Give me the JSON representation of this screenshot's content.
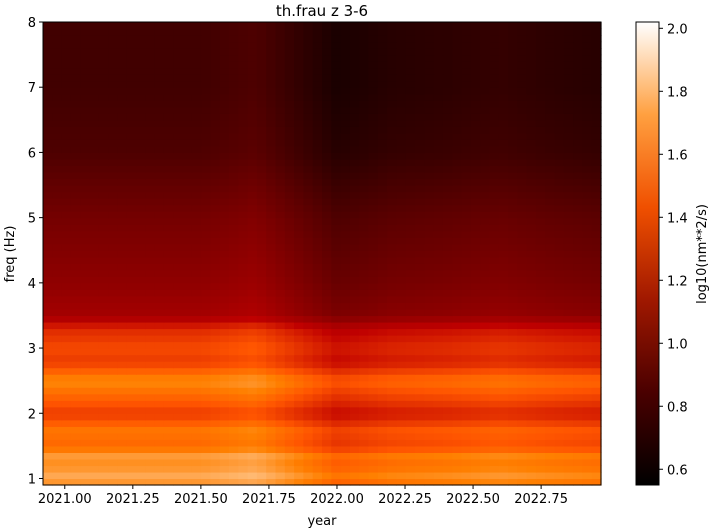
{
  "chart_data": {
    "type": "heatmap",
    "title": "th.frau z 3-6",
    "xlabel": "year",
    "ylabel": "freq (Hz)",
    "xlim": [
      2020.92,
      2022.97
    ],
    "ylim": [
      0.9,
      8.0
    ],
    "x_ticks": [
      2021.0,
      2021.25,
      2021.5,
      2021.75,
      2022.0,
      2022.25,
      2022.5,
      2022.75
    ],
    "x_tick_labels": [
      "2021.00",
      "2021.25",
      "2021.50",
      "2021.75",
      "2022.00",
      "2022.25",
      "2022.50",
      "2022.75"
    ],
    "y_ticks": [
      1,
      2,
      3,
      4,
      5,
      6,
      7,
      8
    ],
    "y_tick_labels": [
      "1",
      "2",
      "3",
      "4",
      "5",
      "6",
      "7",
      "8"
    ],
    "colormap": "gist_heat",
    "colorbar": {
      "label": "log10(nm**2/s)",
      "range": [
        0.55,
        2.02
      ],
      "ticks": [
        0.6,
        0.8,
        1.0,
        1.2,
        1.4,
        1.6,
        1.8,
        2.0
      ],
      "tick_labels": [
        "0.6",
        "0.8",
        "1.0",
        "1.2",
        "1.4",
        "1.6",
        "1.8",
        "2.0"
      ]
    },
    "frequency_profile": {
      "freq_hz": [
        1.0,
        1.1,
        1.2,
        1.3,
        1.5,
        1.75,
        2.0,
        2.2,
        2.5,
        2.8,
        3.0,
        3.3,
        3.5,
        4.0,
        5.0,
        6.0,
        7.0,
        8.0
      ],
      "mean_log10": [
        1.72,
        1.82,
        1.62,
        1.78,
        1.58,
        1.62,
        1.45,
        1.55,
        1.68,
        1.45,
        1.5,
        1.4,
        1.18,
        1.1,
        1.0,
        0.85,
        0.8,
        0.8
      ]
    },
    "time_profile": {
      "year": [
        2020.92,
        2021.2,
        2021.5,
        2021.7,
        2021.85,
        2022.0,
        2022.2,
        2022.4,
        2022.6,
        2022.8,
        2022.97
      ],
      "offset_log10": [
        0.0,
        0.0,
        0.0,
        0.05,
        -0.05,
        -0.15,
        -0.1,
        -0.08,
        -0.05,
        -0.08,
        -0.1
      ]
    }
  }
}
